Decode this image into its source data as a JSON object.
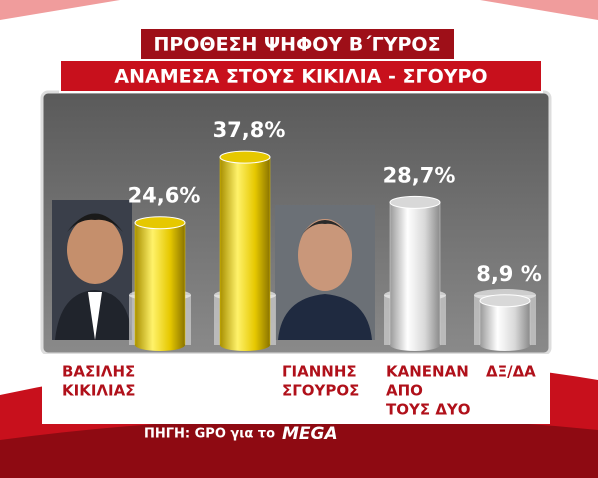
{
  "chart_data": {
    "type": "bar",
    "title": "ΠΡΟΘΕΣΗ ΨΗΦΟΥ Β΄ΓΥΡΟΣ",
    "subtitle": "ΑΝΑΜΕΣΑ ΣΤΟΥΣ ΚΙΚΙΛΙΑ - ΣΓΟΥΡΟ",
    "categories": [
      [
        "ΒΑΣΙΛΗΣ",
        "ΚΙΚΙΛΙΑΣ"
      ],
      [
        "ΓΙΑΝΝΗΣ",
        "ΣΓΟΥΡΟΣ"
      ],
      [
        "ΚΑΝΕΝΑΝ",
        "ΑΠΟ",
        "ΤΟΥΣ ΔΥΟ"
      ],
      [
        "ΔΞ/ΔΑ"
      ]
    ],
    "values": [
      24.6,
      37.8,
      28.7,
      8.9
    ],
    "value_labels": [
      "24,6%",
      "37,8%",
      "28,7%",
      "8,9 %"
    ],
    "colors": [
      "#e6c800",
      "#e6c800",
      "#d8d8d8",
      "#d8d8d8"
    ],
    "source": "ΠΗΓΗ: GPO για το",
    "logo": "MEGA"
  }
}
